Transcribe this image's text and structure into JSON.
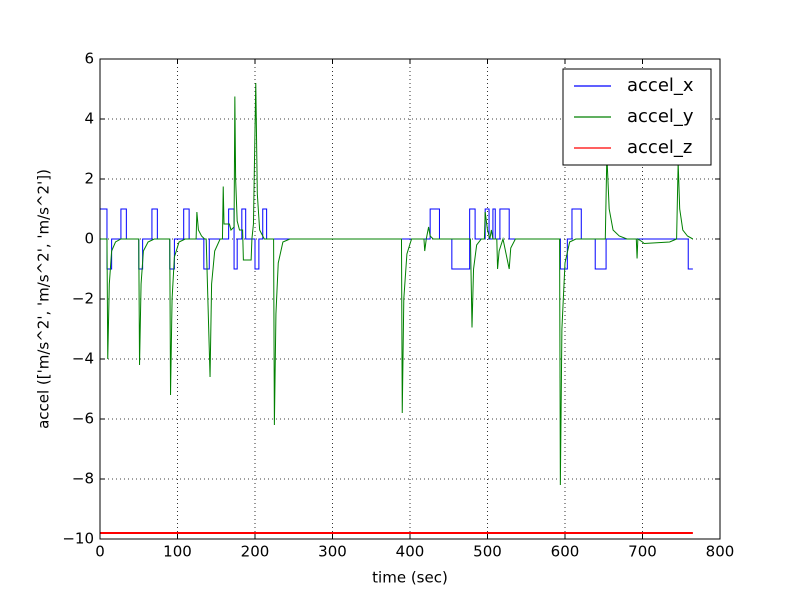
{
  "chart_data": {
    "type": "line",
    "xlabel": "time (sec)",
    "ylabel": "accel (['m/s^2', 'm/s^2', 'm/s^2'])",
    "xlim": [
      0,
      800
    ],
    "ylim": [
      -10,
      6
    ],
    "xticks": [
      0,
      100,
      200,
      300,
      400,
      500,
      600,
      700,
      800
    ],
    "yticks": [
      {
        "value": -10,
        "label": "−10"
      },
      {
        "value": -8,
        "label": "−8"
      },
      {
        "value": -6,
        "label": "−6"
      },
      {
        "value": -4,
        "label": "−4"
      },
      {
        "value": -2,
        "label": "−2"
      },
      0,
      2,
      4,
      6
    ],
    "grid": true,
    "legend": "upper right",
    "series": [
      {
        "name": "accel_x",
        "color": "#0000ff",
        "x": [
          0,
          9,
          9,
          15,
          15,
          27,
          27,
          34,
          34,
          50,
          50,
          55,
          55,
          67,
          67,
          74,
          74,
          90,
          90,
          96,
          96,
          108,
          108,
          115,
          115,
          134,
          134,
          141,
          141,
          166,
          166,
          173,
          173,
          177,
          177,
          183,
          183,
          188,
          188,
          200,
          200,
          205,
          205,
          210,
          210,
          215,
          215,
          426,
          426,
          438,
          438,
          454,
          454,
          477,
          477,
          484,
          484,
          497,
          497,
          502,
          502,
          507,
          507,
          510,
          510,
          516,
          516,
          528,
          528,
          594,
          594,
          603,
          603,
          609,
          609,
          621,
          621,
          639,
          639,
          653,
          653,
          759,
          759,
          765
        ],
        "values": [
          1,
          1,
          -1,
          -1,
          0,
          0,
          1,
          1,
          0,
          0,
          -1,
          -1,
          0,
          0,
          1,
          1,
          0,
          0,
          -1,
          -1,
          0,
          0,
          1,
          1,
          0,
          0,
          -1,
          -1,
          0,
          0,
          1,
          1,
          -1,
          -1,
          0,
          0,
          1,
          1,
          0,
          0,
          -1,
          -1,
          0,
          0,
          1,
          1,
          0,
          0,
          1,
          1,
          0,
          0,
          -1,
          -1,
          1,
          1,
          0,
          0,
          1,
          1,
          0,
          0,
          1,
          1,
          0,
          0,
          1,
          1,
          0,
          0,
          -1,
          -1,
          0,
          0,
          1,
          1,
          0,
          0,
          -1,
          -1,
          0,
          0,
          -1,
          -1
        ]
      },
      {
        "name": "accel_y",
        "color": "#008000",
        "x": [
          0,
          9,
          10,
          12,
          15,
          20,
          27,
          50,
          51,
          53,
          56,
          62,
          70,
          90,
          91,
          93,
          96,
          102,
          110,
          115,
          124,
          125,
          127,
          131,
          135,
          137,
          142,
          144,
          148,
          155,
          158,
          159,
          160,
          167,
          169,
          173,
          174,
          175,
          177,
          180,
          184,
          185,
          195,
          196,
          198,
          201,
          203,
          206,
          212,
          224,
          225,
          227,
          230,
          236,
          245,
          389,
          390,
          392,
          396,
          402,
          418,
          419,
          421,
          424,
          426,
          430,
          478,
          480,
          482,
          486,
          492,
          496,
          497,
          500,
          503,
          505,
          507,
          512,
          513,
          515,
          520,
          528,
          530,
          536,
          593,
          594,
          596,
          600,
          606,
          614,
          652,
          654,
          657,
          662,
          670,
          680,
          692,
          693,
          694,
          700,
          702,
          735,
          744,
          746,
          748,
          752,
          758,
          765
        ],
        "values": [
          0,
          0,
          -4,
          -1.5,
          -0.4,
          -0.1,
          0,
          0,
          -4.2,
          -1.5,
          -0.4,
          -0.1,
          0,
          0,
          -5.2,
          -2,
          -0.6,
          -0.1,
          0,
          0,
          0,
          0.9,
          0.3,
          0.1,
          0,
          0,
          -4.6,
          -1.5,
          -0.4,
          0,
          0,
          1.75,
          0.5,
          0.5,
          0.3,
          0.4,
          4.75,
          2,
          0.6,
          0.3,
          0.3,
          -0.7,
          -0.7,
          0,
          0.5,
          5.2,
          1.5,
          0.3,
          0,
          0,
          -6.2,
          -2.5,
          -0.8,
          -0.1,
          0,
          0,
          -5.8,
          -2,
          -0.5,
          0,
          0,
          -0.4,
          0,
          0.4,
          0.1,
          0,
          0,
          -2.95,
          -1,
          -0.2,
          0,
          0,
          0.9,
          0.3,
          0,
          0.3,
          0,
          0,
          -1,
          -0.4,
          0,
          -1,
          -0.3,
          0,
          0,
          -8.2,
          -3,
          -0.8,
          -0.1,
          0,
          0,
          2.8,
          1,
          0.3,
          0.1,
          0,
          0,
          -0.65,
          0,
          -0.1,
          -0.15,
          -0.1,
          0,
          2.55,
          1,
          0.3,
          0.1,
          0
        ]
      },
      {
        "name": "accel_z",
        "color": "#ff0000",
        "x": [
          0,
          765
        ],
        "values": [
          -9.8,
          -9.8
        ]
      }
    ]
  }
}
